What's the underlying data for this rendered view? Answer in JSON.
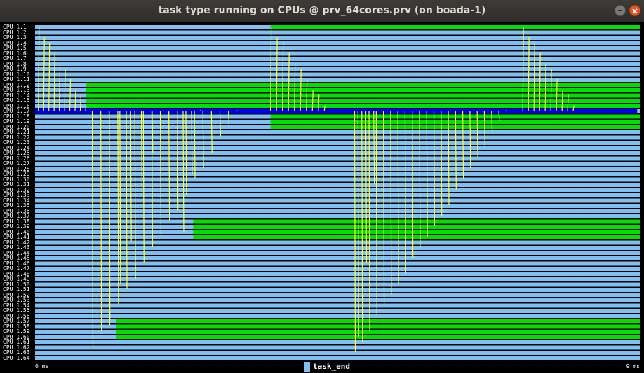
{
  "window": {
    "title": "task type running on CPUs @ prv_64cores.prv (on boada-1)"
  },
  "timeline": {
    "cpu_labels": [
      "CPU 1.1",
      "CPU 1.2",
      "CPU 1.3",
      "CPU 1.4",
      "CPU 1.5",
      "CPU 1.6",
      "CPU 1.7",
      "CPU 1.8",
      "CPU 1.9",
      "CPU 1.10",
      "CPU 1.11",
      "CPU 1.12",
      "CPU 1.13",
      "CPU 1.14",
      "CPU 1.15",
      "CPU 1.16",
      "CPU 1.17",
      "CPU 1.18",
      "CPU 1.19",
      "CPU 1.20",
      "CPU 1.21",
      "CPU 1.22",
      "CPU 1.23",
      "CPU 1.24",
      "CPU 1.25",
      "CPU 1.26",
      "CPU 1.27",
      "CPU 1.28",
      "CPU 1.29",
      "CPU 1.30",
      "CPU 1.31",
      "CPU 1.32",
      "CPU 1.33",
      "CPU 1.34",
      "CPU 1.35",
      "CPU 1.36",
      "CPU 1.37",
      "CPU 1.38",
      "CPU 1.39",
      "CPU 1.40",
      "CPU 1.41",
      "CPU 1.42",
      "CPU 1.43",
      "CPU 1.44",
      "CPU 1.45",
      "CPU 1.46",
      "CPU 1.47",
      "CPU 1.48",
      "CPU 1.49",
      "CPU 1.50",
      "CPU 1.51",
      "CPU 1.52",
      "CPU 1.53",
      "CPU 1.54",
      "CPU 1.55",
      "CPU 1.56",
      "CPU 1.57",
      "CPU 1.58",
      "CPU 1.59",
      "CPU 1.60",
      "CPU 1.61",
      "CPU 1.62",
      "CPU 1.63",
      "CPU 1.64"
    ],
    "x_start_label": "0 ms",
    "x_end_label": "9 ms",
    "time_range_ms": [
      0,
      9
    ],
    "legend": {
      "label": "task_end",
      "color": "#7fbff2"
    },
    "colors": {
      "idle_state": "#7fbff2",
      "running_state": "#00e000",
      "main_thread": "#0000e8",
      "communication": "#ffff40"
    },
    "running_segments_ms": [
      {
        "cpus": [
          1
        ],
        "start": 3.5,
        "end": 9
      },
      {
        "cpus": [
          12,
          13,
          14,
          15,
          16
        ],
        "start": 0.76,
        "end": 9
      },
      {
        "cpus": [
          18,
          19,
          20
        ],
        "start": 3.5,
        "end": 9
      },
      {
        "cpus": [
          38,
          39,
          40,
          41
        ],
        "start": 2.35,
        "end": 9
      },
      {
        "cpus": [
          57,
          58,
          59,
          60
        ],
        "start": 1.2,
        "end": 9
      }
    ],
    "main_thread_segment_ms": {
      "cpu": 17,
      "start": 0,
      "end": 8.95
    }
  }
}
